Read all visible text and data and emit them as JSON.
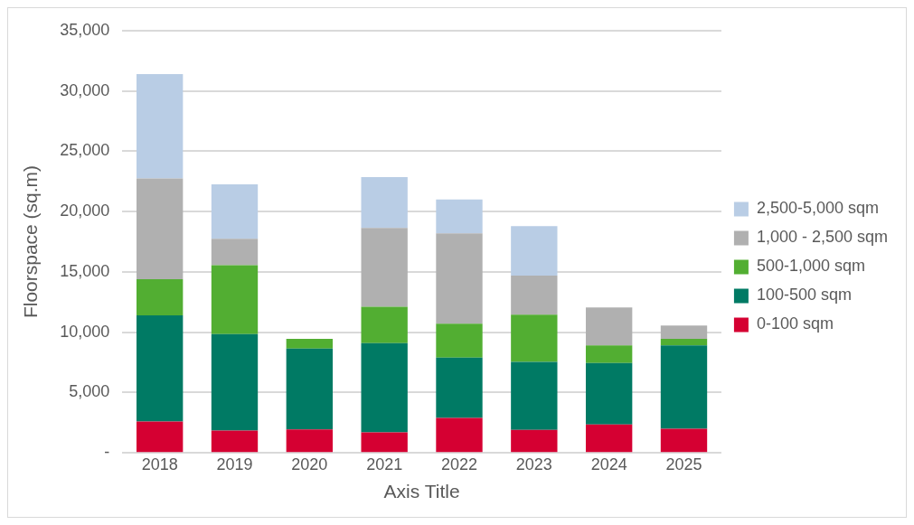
{
  "chart_data": {
    "type": "bar",
    "stacked": true,
    "xlabel": "Axis Title",
    "ylabel": "Floorspace (sq.m)",
    "categories": [
      "2018",
      "2019",
      "2020",
      "2021",
      "2022",
      "2023",
      "2024",
      "2025"
    ],
    "series": [
      {
        "name": "0-100 sqm",
        "color": "#d50032",
        "values": [
          2600,
          1850,
          1950,
          1700,
          2900,
          1900,
          2350,
          2000
        ]
      },
      {
        "name": "100-500 sqm",
        "color": "#007a64",
        "values": [
          8800,
          8000,
          6700,
          7400,
          5000,
          5650,
          5100,
          6900
        ]
      },
      {
        "name": "500-1,000 sqm",
        "color": "#52ae32",
        "values": [
          3000,
          5700,
          800,
          3000,
          2800,
          3900,
          1450,
          550
        ]
      },
      {
        "name": "1,000 - 2,500 sqm",
        "color": "#b0b0b0",
        "values": [
          8350,
          2200,
          null,
          6550,
          7500,
          3250,
          3150,
          1100
        ]
      },
      {
        "name": "2,500-5,000 sqm",
        "color": "#b9cde5",
        "values": [
          8650,
          4500,
          null,
          4200,
          2800,
          4100,
          null,
          null
        ]
      }
    ],
    "ylim": [
      0,
      35000
    ],
    "yticks": [
      {
        "value": 0,
        "label": "-"
      },
      {
        "value": 5000,
        "label": "5,000"
      },
      {
        "value": 10000,
        "label": "10,000"
      },
      {
        "value": 15000,
        "label": "15,000"
      },
      {
        "value": 20000,
        "label": "20,000"
      },
      {
        "value": 25000,
        "label": "25,000"
      },
      {
        "value": 30000,
        "label": "30,000"
      },
      {
        "value": 35000,
        "label": "35,000"
      }
    ],
    "grid": "y",
    "legend": "right"
  }
}
